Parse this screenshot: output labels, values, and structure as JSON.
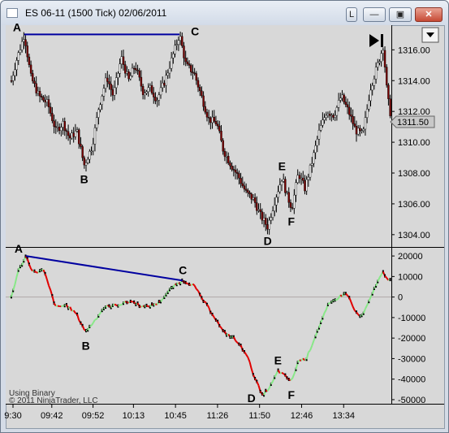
{
  "window": {
    "title": "ES 06-11 (1500 Tick)  02/06/2011",
    "link_label": "L",
    "minimize_glyph": "—",
    "maximize_glyph": "▣",
    "close_glyph": "✕",
    "dropdown_icon": "triangle-down-icon",
    "play_to_end_icon": "skip-to-end-icon"
  },
  "price_marker": "1311.50",
  "footer": {
    "line1": "Using Binary",
    "line2": "© 2011 NinjaTrader, LLC"
  },
  "colors": {
    "bar": "#000000",
    "down": "#e00000",
    "up": "#88e888",
    "trendline": "#0000a0",
    "zero_line": "#b0a8a8"
  },
  "chart_data": [
    {
      "type": "bar",
      "panel": "price",
      "ylim": [
        1303.2,
        1317.6
      ],
      "yticks": [
        1304.0,
        1306.0,
        1308.0,
        1310.0,
        1312.0,
        1314.0,
        1316.0
      ],
      "ytick_labels": [
        "1304.00",
        "1306.00",
        "1308.00",
        "1310.00",
        "1312.00",
        "1314.00",
        "1316.00"
      ],
      "current_value": 1311.5,
      "points": [
        {
          "x": 0,
          "y": 1314.0
        },
        {
          "x": 6,
          "y": 1315.25
        },
        {
          "x": 16,
          "y": 1317.0
        },
        {
          "x": 24,
          "y": 1314.25
        },
        {
          "x": 34,
          "y": 1313.0
        },
        {
          "x": 45,
          "y": 1312.5
        },
        {
          "x": 55,
          "y": 1310.75
        },
        {
          "x": 64,
          "y": 1311.25
        },
        {
          "x": 72,
          "y": 1310.25
        },
        {
          "x": 81,
          "y": 1310.75
        },
        {
          "x": 90,
          "y": 1308.5
        },
        {
          "x": 100,
          "y": 1309.75
        },
        {
          "x": 108,
          "y": 1312.25
        },
        {
          "x": 118,
          "y": 1314.25
        },
        {
          "x": 126,
          "y": 1313.0
        },
        {
          "x": 136,
          "y": 1315.5
        },
        {
          "x": 145,
          "y": 1314.0
        },
        {
          "x": 153,
          "y": 1315.0
        },
        {
          "x": 163,
          "y": 1313.25
        },
        {
          "x": 172,
          "y": 1313.5
        },
        {
          "x": 180,
          "y": 1312.75
        },
        {
          "x": 190,
          "y": 1314.0
        },
        {
          "x": 199,
          "y": 1315.5
        },
        {
          "x": 208,
          "y": 1317.0
        },
        {
          "x": 216,
          "y": 1315.0
        },
        {
          "x": 226,
          "y": 1314.5
        },
        {
          "x": 235,
          "y": 1313.0
        },
        {
          "x": 244,
          "y": 1311.5
        },
        {
          "x": 254,
          "y": 1311.25
        },
        {
          "x": 262,
          "y": 1309.5
        },
        {
          "x": 272,
          "y": 1308.5
        },
        {
          "x": 281,
          "y": 1307.75
        },
        {
          "x": 290,
          "y": 1306.75
        },
        {
          "x": 300,
          "y": 1306.25
        },
        {
          "x": 308,
          "y": 1305.25
        },
        {
          "x": 317,
          "y": 1304.5
        },
        {
          "x": 326,
          "y": 1306.25
        },
        {
          "x": 335,
          "y": 1307.75
        },
        {
          "x": 341,
          "y": 1306.5
        },
        {
          "x": 347,
          "y": 1305.75
        },
        {
          "x": 355,
          "y": 1308.0
        },
        {
          "x": 363,
          "y": 1307.0
        },
        {
          "x": 372,
          "y": 1308.75
        },
        {
          "x": 381,
          "y": 1310.75
        },
        {
          "x": 390,
          "y": 1312.0
        },
        {
          "x": 399,
          "y": 1311.75
        },
        {
          "x": 408,
          "y": 1313.0
        },
        {
          "x": 417,
          "y": 1312.0
        },
        {
          "x": 426,
          "y": 1310.75
        },
        {
          "x": 435,
          "y": 1310.5
        },
        {
          "x": 444,
          "y": 1313.5
        },
        {
          "x": 453,
          "y": 1315.0
        },
        {
          "x": 460,
          "y": 1316.25
        },
        {
          "x": 465,
          "y": 1313.0
        },
        {
          "x": 470,
          "y": 1311.5
        }
      ]
    },
    {
      "type": "line",
      "panel": "indicator",
      "ylim": [
        -52000,
        24000
      ],
      "yticks": [
        -50000,
        -40000,
        -30000,
        -20000,
        -10000,
        0,
        10000,
        20000
      ],
      "ytick_labels": [
        "-50000",
        "-40000",
        "-30000",
        "-20000",
        "-10000",
        "0",
        "10000",
        "20000"
      ],
      "points": [
        {
          "x": 0,
          "y": 0
        },
        {
          "x": 8,
          "y": 12000
        },
        {
          "x": 18,
          "y": 20000
        },
        {
          "x": 27,
          "y": 12000
        },
        {
          "x": 40,
          "y": 13000
        },
        {
          "x": 55,
          "y": -5000
        },
        {
          "x": 68,
          "y": -4000
        },
        {
          "x": 80,
          "y": -8000
        },
        {
          "x": 92,
          "y": -17000
        },
        {
          "x": 102,
          "y": -12000
        },
        {
          "x": 115,
          "y": -5000
        },
        {
          "x": 130,
          "y": -4000
        },
        {
          "x": 148,
          "y": -2000
        },
        {
          "x": 165,
          "y": -5000
        },
        {
          "x": 182,
          "y": -3000
        },
        {
          "x": 200,
          "y": 5000
        },
        {
          "x": 212,
          "y": 8000
        },
        {
          "x": 225,
          "y": 6000
        },
        {
          "x": 238,
          "y": -2000
        },
        {
          "x": 252,
          "y": -10000
        },
        {
          "x": 262,
          "y": -17000
        },
        {
          "x": 275,
          "y": -20000
        },
        {
          "x": 290,
          "y": -27000
        },
        {
          "x": 300,
          "y": -38000
        },
        {
          "x": 310,
          "y": -48000
        },
        {
          "x": 320,
          "y": -44000
        },
        {
          "x": 330,
          "y": -36000
        },
        {
          "x": 340,
          "y": -39000
        },
        {
          "x": 347,
          "y": -41000
        },
        {
          "x": 355,
          "y": -31000
        },
        {
          "x": 365,
          "y": -30000
        },
        {
          "x": 378,
          "y": -17000
        },
        {
          "x": 392,
          "y": -4000
        },
        {
          "x": 405,
          "y": 0
        },
        {
          "x": 415,
          "y": 2000
        },
        {
          "x": 425,
          "y": -7000
        },
        {
          "x": 433,
          "y": -10000
        },
        {
          "x": 443,
          "y": -2000
        },
        {
          "x": 452,
          "y": 7000
        },
        {
          "x": 460,
          "y": 12000
        },
        {
          "x": 468,
          "y": 8000
        },
        {
          "x": 474,
          "y": 6000
        }
      ]
    }
  ],
  "time_axis": {
    "labels": [
      {
        "x": 0,
        "label": "9:30"
      },
      {
        "x": 50,
        "label": "09:42"
      },
      {
        "x": 101,
        "label": "09:52"
      },
      {
        "x": 151,
        "label": "10:13"
      },
      {
        "x": 203,
        "label": "10:45"
      },
      {
        "x": 255,
        "label": "11:26"
      },
      {
        "x": 307,
        "label": "11:50"
      },
      {
        "x": 359,
        "label": "12:46"
      },
      {
        "x": 411,
        "label": "13:34"
      }
    ]
  },
  "annotations": {
    "price": [
      {
        "label": "A",
        "x": 16,
        "y": 1317.0,
        "pos": "above-left"
      },
      {
        "label": "B",
        "x": 90,
        "y": 1308.5,
        "pos": "below"
      },
      {
        "label": "C",
        "x": 208,
        "y": 1317.0,
        "pos": "right"
      },
      {
        "label": "D",
        "x": 317,
        "y": 1304.5,
        "pos": "below"
      },
      {
        "label": "E",
        "x": 335,
        "y": 1307.75,
        "pos": "above"
      },
      {
        "label": "F",
        "x": 347,
        "y": 1305.75,
        "pos": "below"
      }
    ],
    "indicator": [
      {
        "label": "A",
        "x": 18,
        "y": 20000,
        "pos": "above-left"
      },
      {
        "label": "B",
        "x": 92,
        "y": -17000,
        "pos": "below"
      },
      {
        "label": "C",
        "x": 212,
        "y": 8000,
        "pos": "above"
      },
      {
        "label": "D",
        "x": 310,
        "y": -48000,
        "pos": "left"
      },
      {
        "label": "E",
        "x": 330,
        "y": -36000,
        "pos": "above"
      },
      {
        "label": "F",
        "x": 347,
        "y": -41000,
        "pos": "below"
      }
    ]
  },
  "trendlines": {
    "price": [
      {
        "x": 16,
        "y": 1317.0
      },
      {
        "x": 208,
        "y": 1317.0
      }
    ],
    "indicator": [
      {
        "x": 18,
        "y": 20000
      },
      {
        "x": 212,
        "y": 8000
      }
    ]
  }
}
